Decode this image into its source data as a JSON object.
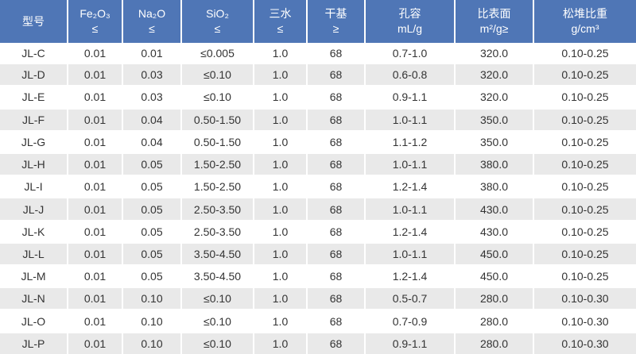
{
  "table": {
    "columns": [
      {
        "id": "model",
        "line1": "型号",
        "line2": ""
      },
      {
        "id": "fe2o3",
        "line1": "Fe₂O₃",
        "line2": "≤"
      },
      {
        "id": "na2o",
        "line1": "Na₂O",
        "line2": "≤"
      },
      {
        "id": "sio2",
        "line1": "SiO₂",
        "line2": "≤"
      },
      {
        "id": "trihydrate",
        "line1": "三水",
        "line2": "≤"
      },
      {
        "id": "dry-basis",
        "line1": "干基",
        "line2": "≥"
      },
      {
        "id": "pore-volume",
        "line1": "孔容",
        "line2": "mL/g"
      },
      {
        "id": "surface-area",
        "line1": "比表面",
        "line2": "m²/g≥"
      },
      {
        "id": "bulk-density",
        "line1": "松堆比重",
        "line2": "g/cm³"
      }
    ],
    "rows": [
      [
        "JL-C",
        "0.01",
        "0.01",
        "≤0.005",
        "1.0",
        "68",
        "0.7-1.0",
        "320.0",
        "0.10-0.25"
      ],
      [
        "JL-D",
        "0.01",
        "0.03",
        "≤0.10",
        "1.0",
        "68",
        "0.6-0.8",
        "320.0",
        "0.10-0.25"
      ],
      [
        "JL-E",
        "0.01",
        "0.03",
        "≤0.10",
        "1.0",
        "68",
        "0.9-1.1",
        "320.0",
        "0.10-0.25"
      ],
      [
        "JL-F",
        "0.01",
        "0.04",
        "0.50-1.50",
        "1.0",
        "68",
        "1.0-1.1",
        "350.0",
        "0.10-0.25"
      ],
      [
        "JL-G",
        "0.01",
        "0.04",
        "0.50-1.50",
        "1.0",
        "68",
        "1.1-1.2",
        "350.0",
        "0.10-0.25"
      ],
      [
        "JL-H",
        "0.01",
        "0.05",
        "1.50-2.50",
        "1.0",
        "68",
        "1.0-1.1",
        "380.0",
        "0.10-0.25"
      ],
      [
        "JL-I",
        "0.01",
        "0.05",
        "1.50-2.50",
        "1.0",
        "68",
        "1.2-1.4",
        "380.0",
        "0.10-0.25"
      ],
      [
        "JL-J",
        "0.01",
        "0.05",
        "2.50-3.50",
        "1.0",
        "68",
        "1.0-1.1",
        "430.0",
        "0.10-0.25"
      ],
      [
        "JL-K",
        "0.01",
        "0.05",
        "2.50-3.50",
        "1.0",
        "68",
        "1.2-1.4",
        "430.0",
        "0.10-0.25"
      ],
      [
        "JL-L",
        "0.01",
        "0.05",
        "3.50-4.50",
        "1.0",
        "68",
        "1.0-1.1",
        "450.0",
        "0.10-0.25"
      ],
      [
        "JL-M",
        "0.01",
        "0.05",
        "3.50-4.50",
        "1.0",
        "68",
        "1.2-1.4",
        "450.0",
        "0.10-0.25"
      ],
      [
        "JL-N",
        "0.01",
        "0.10",
        "≤0.10",
        "1.0",
        "68",
        "0.5-0.7",
        "280.0",
        "0.10-0.30"
      ],
      [
        "JL-O",
        "0.01",
        "0.10",
        "≤0.10",
        "1.0",
        "68",
        "0.7-0.9",
        "280.0",
        "0.10-0.30"
      ],
      [
        "JL-P",
        "0.01",
        "0.10",
        "≤0.10",
        "1.0",
        "68",
        "0.9-1.1",
        "280.0",
        "0.10-0.30"
      ]
    ]
  },
  "colors": {
    "header_bg": "#4f76b6",
    "header_text": "#ffffff",
    "row_bg": "#ffffff",
    "row_alt_bg": "#e9e9e9",
    "body_text": "#333333",
    "grid": "#ffffff"
  }
}
